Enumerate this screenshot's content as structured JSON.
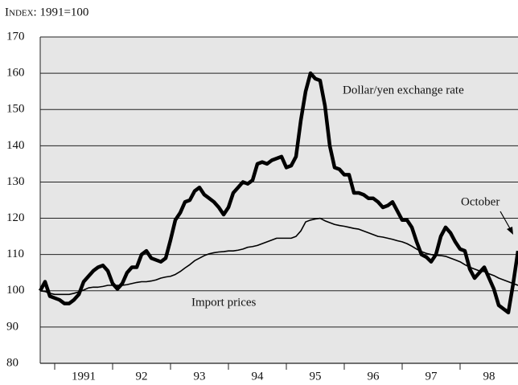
{
  "chart_data": {
    "type": "line",
    "title": "Index: 1991=100",
    "annotations": [
      "Dollar/yen exchange rate",
      "Import prices",
      "October"
    ],
    "x": [
      1990.75,
      1990.833,
      1990.917,
      1991.0,
      1991.083,
      1991.167,
      1991.25,
      1991.333,
      1991.417,
      1991.5,
      1991.583,
      1991.667,
      1991.75,
      1991.833,
      1991.917,
      1992.0,
      1992.083,
      1992.167,
      1992.25,
      1992.333,
      1992.417,
      1992.5,
      1992.583,
      1992.667,
      1992.75,
      1992.833,
      1992.917,
      1993.0,
      1993.083,
      1993.167,
      1993.25,
      1993.333,
      1993.417,
      1993.5,
      1993.583,
      1993.667,
      1993.75,
      1993.833,
      1993.917,
      1994.0,
      1994.083,
      1994.167,
      1994.25,
      1994.333,
      1994.417,
      1994.5,
      1994.583,
      1994.667,
      1994.75,
      1994.833,
      1994.917,
      1995.0,
      1995.083,
      1995.167,
      1995.25,
      1995.333,
      1995.417,
      1995.5,
      1995.583,
      1995.667,
      1995.75,
      1995.833,
      1995.917,
      1996.0,
      1996.083,
      1996.167,
      1996.25,
      1996.333,
      1996.417,
      1996.5,
      1996.583,
      1996.667,
      1996.75,
      1996.833,
      1996.917,
      1997.0,
      1997.083,
      1997.167,
      1997.25,
      1997.333,
      1997.417,
      1997.5,
      1997.583,
      1997.667,
      1997.75,
      1997.833,
      1997.917,
      1998.0,
      1998.083,
      1998.167,
      1998.25,
      1998.333,
      1998.417,
      1998.5,
      1998.583,
      1998.667,
      1998.75,
      1998.833,
      1998.917,
      1999.0
    ],
    "series": [
      {
        "name": "Dollar/yen exchange rate",
        "color": "#000000",
        "width": 4.5,
        "values": [
          100,
          102.5,
          98.5,
          98,
          97.5,
          96.5,
          96.5,
          97.5,
          99,
          102.5,
          104,
          105.5,
          106.5,
          107,
          105.5,
          102,
          100.5,
          102,
          105,
          106.5,
          106.5,
          110,
          111,
          109,
          108.5,
          108,
          109,
          114,
          119.5,
          121.5,
          124.5,
          125,
          127.5,
          128.5,
          126.5,
          125.5,
          124.5,
          123,
          121,
          123,
          127,
          128.5,
          130,
          129.5,
          130.5,
          135,
          135.5,
          135,
          136,
          136.5,
          137,
          134,
          134.5,
          137,
          147,
          155,
          160,
          158.5,
          158,
          151,
          140,
          134,
          133.5,
          132,
          132,
          127,
          127,
          126.5,
          125.5,
          125.5,
          124.5,
          123,
          123.5,
          124.5,
          122,
          119.5,
          119.5,
          117.5,
          113.5,
          110,
          109.3,
          108,
          110,
          115,
          117.5,
          116,
          113.5,
          111.5,
          111,
          106,
          103.5,
          105,
          106.5,
          103.5,
          100.5,
          96,
          95,
          94,
          102,
          111
        ]
      },
      {
        "name": "Import prices",
        "color": "#000000",
        "width": 1.6,
        "values": [
          100,
          99.8,
          99.3,
          99,
          99,
          99,
          99,
          99.3,
          99.7,
          100.2,
          100.8,
          101,
          101,
          101.2,
          101.5,
          101.5,
          101.5,
          101.5,
          101.7,
          102,
          102.3,
          102.5,
          102.5,
          102.7,
          103,
          103.5,
          103.8,
          104,
          104.5,
          105.3,
          106.3,
          107.2,
          108.3,
          109,
          109.7,
          110.2,
          110.5,
          110.7,
          110.8,
          111,
          111,
          111.2,
          111.5,
          112,
          112.2,
          112.5,
          113,
          113.5,
          114,
          114.5,
          114.5,
          114.5,
          114.5,
          115,
          116.5,
          119,
          119.5,
          119.8,
          120,
          119.3,
          118.8,
          118.3,
          118,
          117.8,
          117.5,
          117.2,
          117,
          116.5,
          116,
          115.5,
          115,
          114.8,
          114.5,
          114.2,
          113.8,
          113.5,
          113,
          112.3,
          111.5,
          110.8,
          110.3,
          110,
          109.8,
          109.7,
          109.5,
          109,
          108.5,
          108,
          107.2,
          106.5,
          106,
          105.5,
          105.3,
          104.7,
          104.2,
          103.5,
          103,
          102.5,
          102,
          101.5
        ]
      }
    ],
    "xlim": [
      1990.75,
      1999.0
    ],
    "xticks": [
      1991,
      1992,
      1993,
      1994,
      1995,
      1996,
      1997,
      1998
    ],
    "xlabels": [
      {
        "value": 1991.5,
        "label": "1991"
      },
      {
        "value": 1992.5,
        "label": "92"
      },
      {
        "value": 1993.5,
        "label": "93"
      },
      {
        "value": 1994.5,
        "label": "94"
      },
      {
        "value": 1995.5,
        "label": "95"
      },
      {
        "value": 1996.5,
        "label": "96"
      },
      {
        "value": 1997.5,
        "label": "97"
      },
      {
        "value": 1998.5,
        "label": "98"
      }
    ],
    "ylim": [
      80,
      170
    ],
    "yticks": [
      80,
      90,
      100,
      110,
      120,
      130,
      140,
      150,
      160,
      170
    ],
    "grid": true,
    "background": "#e6e6e6"
  }
}
